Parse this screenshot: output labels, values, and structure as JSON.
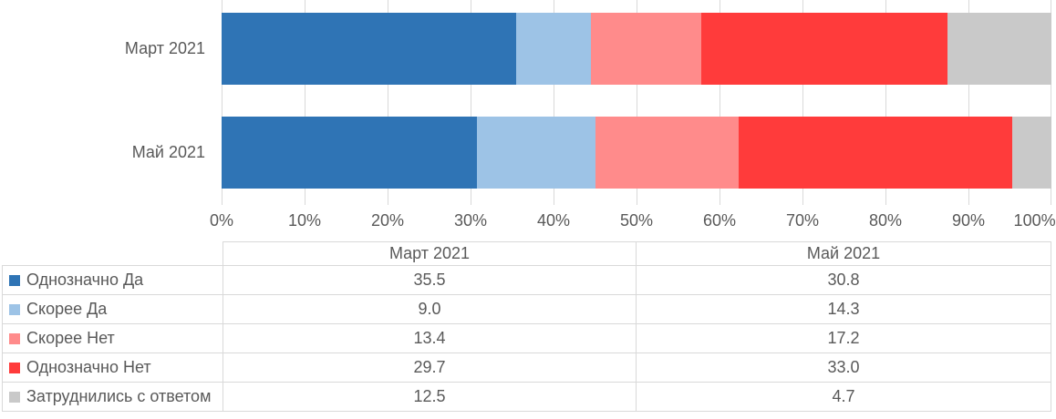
{
  "chart_data": {
    "type": "bar",
    "subtype": "horizontal-stacked",
    "title": "",
    "categories": [
      "Март 2021",
      "Май 2021"
    ],
    "series": [
      {
        "name": "Однозначно Да",
        "color": "#2F74B5",
        "values": [
          35.5,
          30.8
        ]
      },
      {
        "name": "Скорее Да",
        "color": "#9DC3E6",
        "values": [
          9.0,
          14.3
        ]
      },
      {
        "name": "Скорее Нет",
        "color": "#FF8B8B",
        "values": [
          13.4,
          17.2
        ]
      },
      {
        "name": "Однозначно Нет",
        "color": "#FF3B3B",
        "values": [
          29.7,
          33.0
        ]
      },
      {
        "name": "Затруднились с ответом",
        "color": "#C9C9C9",
        "values": [
          12.5,
          4.7
        ]
      }
    ],
    "x_axis": {
      "min": 0,
      "max": 100,
      "tick_step": 10,
      "unit": "percent",
      "tick_labels": [
        "0%",
        "10%",
        "20%",
        "30%",
        "40%",
        "50%",
        "60%",
        "70%",
        "80%",
        "90%",
        "100%"
      ]
    },
    "grid": true,
    "legend_position": "table-below-chart"
  },
  "table": {
    "headers": [
      "Март 2021",
      "Май 2021"
    ],
    "rows": [
      {
        "label": "Однозначно Да",
        "values": [
          "35.5",
          "30.8"
        ]
      },
      {
        "label": "Скорее Да",
        "values": [
          "9.0",
          "14.3"
        ]
      },
      {
        "label": "Скорее Нет",
        "values": [
          "13.4",
          "17.2"
        ]
      },
      {
        "label": "Однозначно Нет",
        "values": [
          "29.7",
          "33.0"
        ]
      },
      {
        "label": "Затруднились с ответом",
        "values": [
          "12.5",
          "4.7"
        ]
      }
    ]
  },
  "colors": {
    "gridline": "#d9d9d9",
    "table_border": "#d9d9d9",
    "text": "#595959",
    "background": "#ffffff"
  }
}
